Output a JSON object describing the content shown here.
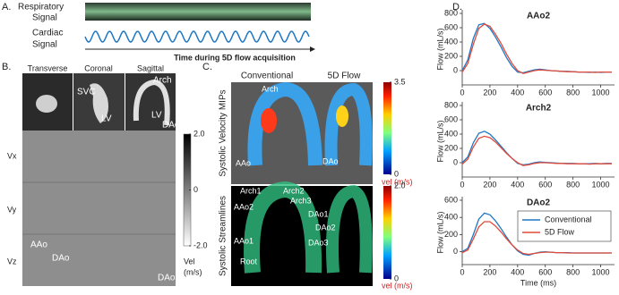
{
  "panel_a": {
    "label": "A.",
    "respiratory": [
      "Respiratory",
      "Signal"
    ],
    "cardiac": [
      "Cardiac",
      "Signal"
    ],
    "axis_label": "Time during 5D flow acquisition"
  },
  "panel_b": {
    "label": "B.",
    "columns": [
      "Transverse",
      "Coronal",
      "Sagittal"
    ],
    "rows": [
      "Vx",
      "Vy",
      "Vz"
    ],
    "annotations": [
      "SVC",
      "LV",
      "LV",
      "Arch",
      "DAo",
      "AAo",
      "DAo",
      "DAo"
    ],
    "colorbar": {
      "lim": [
        -2,
        2
      ],
      "ticks": [
        {
          "value": 2,
          "label": "2.0"
        },
        0,
        {
          "value": -2,
          "label": "-2.0"
        }
      ],
      "title": [
        "Vel",
        "(m/s)"
      ]
    }
  },
  "panel_c": {
    "label": "C.",
    "columns": [
      "Conventional",
      "5D Flow"
    ],
    "rows": [
      "Systolic Velocity MIPs",
      "Systolic Streamlines"
    ],
    "mip_annotations": [
      "Arch",
      "AAo",
      "DAo"
    ],
    "streamline_annotations": [
      "Arch1",
      "Arch2",
      "Arch3",
      "AAo2",
      "DAo1",
      "DAo2",
      "DAo3",
      "AAo1",
      "Root"
    ],
    "colorbars": [
      {
        "lim": [
          0,
          3.5
        ],
        "ticks": [
          3.5,
          0
        ],
        "title": "vel (m/s)"
      },
      {
        "lim": [
          0,
          2
        ],
        "ticks": [
          {
            "value": 2,
            "label": "2.0"
          },
          0
        ],
        "title": "vel (m/s)"
      }
    ]
  },
  "panel_d": {
    "label": "D."
  },
  "chart_data": [
    {
      "type": "line",
      "title": "AAo2",
      "ylabel": "Flow (mL/s)",
      "xlim": [
        0,
        1100
      ],
      "ylim": [
        -200,
        800
      ],
      "xticks": [
        0,
        200,
        400,
        600,
        800,
        1000
      ],
      "yticks": [
        0,
        200,
        400,
        600,
        800
      ],
      "x": [
        0,
        40,
        80,
        120,
        160,
        200,
        240,
        280,
        320,
        360,
        400,
        440,
        480,
        520,
        560,
        600,
        640,
        680,
        720,
        760,
        800,
        840,
        880,
        920,
        960,
        1000,
        1040,
        1080
      ],
      "series": [
        {
          "color": "#1f77c4",
          "values": [
            0,
            150,
            450,
            640,
            660,
            590,
            470,
            330,
            180,
            60,
            -20,
            -30,
            -10,
            10,
            20,
            10,
            0,
            -5,
            -10,
            -10,
            -15,
            -20,
            -20,
            -25,
            -20,
            -25,
            -20,
            -20
          ]
        },
        {
          "color": "#e04a3a",
          "values": [
            -20,
            100,
            370,
            590,
            650,
            620,
            510,
            380,
            230,
            100,
            0,
            -40,
            -20,
            0,
            10,
            5,
            0,
            -5,
            -10,
            -15,
            -15,
            -20,
            -20,
            -20,
            -25,
            -20,
            -20,
            -20
          ]
        }
      ]
    },
    {
      "type": "line",
      "title": "Arch2",
      "ylabel": "Flow (mL/s)",
      "xlim": [
        0,
        1100
      ],
      "ylim": [
        -200,
        800
      ],
      "xticks": [
        0,
        200,
        400,
        600,
        800,
        1000
      ],
      "yticks": [
        0,
        200,
        400,
        600,
        800
      ],
      "x": [
        0,
        40,
        80,
        120,
        160,
        200,
        240,
        280,
        320,
        360,
        400,
        440,
        480,
        520,
        560,
        600,
        640,
        680,
        720,
        760,
        800,
        840,
        880,
        920,
        960,
        1000,
        1040,
        1080
      ],
      "series": [
        {
          "color": "#1f77c4",
          "values": [
            0,
            80,
            280,
            410,
            440,
            400,
            320,
            230,
            140,
            60,
            -10,
            -30,
            -20,
            0,
            10,
            5,
            0,
            -5,
            -10,
            -10,
            -10,
            -15,
            -15,
            -15,
            -10,
            -15,
            -10,
            -10
          ]
        },
        {
          "color": "#e04a3a",
          "values": [
            -20,
            50,
            220,
            340,
            370,
            350,
            290,
            210,
            130,
            60,
            0,
            -40,
            -30,
            -10,
            0,
            0,
            -5,
            -10,
            -10,
            -15,
            -15,
            -15,
            -15,
            -20,
            -15,
            -15,
            -15,
            -15
          ]
        }
      ]
    },
    {
      "type": "line",
      "title": "DAo2",
      "ylabel": "Flow (mL/s)",
      "xlabel": "Time (ms)",
      "xlim": [
        0,
        1100
      ],
      "ylim": [
        -150,
        600
      ],
      "xticks": [
        0,
        200,
        400,
        600,
        800,
        1000
      ],
      "yticks": [
        0,
        200,
        400,
        600
      ],
      "legend": "upper right",
      "x": [
        0,
        40,
        80,
        120,
        160,
        200,
        240,
        280,
        320,
        360,
        400,
        440,
        480,
        520,
        560,
        600,
        640,
        680,
        720,
        760,
        800,
        840,
        880,
        920,
        960,
        1000,
        1040,
        1080
      ],
      "series": [
        {
          "name": "Conventional",
          "color": "#1f77c4",
          "values": [
            0,
            40,
            200,
            380,
            450,
            430,
            360,
            270,
            170,
            80,
            10,
            -30,
            -40,
            -20,
            -5,
            0,
            -5,
            -10,
            -10,
            -10,
            -15,
            -15,
            -15,
            -15,
            -15,
            -15,
            -15,
            -15
          ]
        },
        {
          "name": "5D Flow",
          "color": "#e04a3a",
          "values": [
            -10,
            20,
            150,
            290,
            350,
            350,
            300,
            230,
            150,
            80,
            20,
            -20,
            -30,
            -20,
            -10,
            -5,
            -5,
            -10,
            -10,
            -15,
            -15,
            -15,
            -15,
            -15,
            -15,
            -15,
            -15,
            -15
          ]
        }
      ]
    }
  ]
}
